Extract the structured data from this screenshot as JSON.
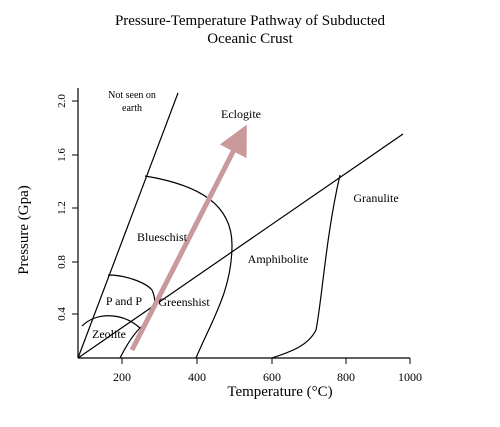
{
  "title": [
    "Pressure-Temperature Pathway of Subducted",
    "Oceanic Crust"
  ],
  "xlabel": "Temperature (°C)",
  "ylabel": "Pressure (Gpa)",
  "x_ticks": [
    "200",
    "400",
    "600",
    "800",
    "1000"
  ],
  "y_ticks": [
    "0.4",
    "0.8",
    "1.2",
    "1.6",
    "2.0"
  ],
  "regions": [
    {
      "key": "not_seen",
      "label": [
        "Not seen on",
        "earth"
      ]
    },
    {
      "key": "eclogite",
      "label": [
        "Eclogite"
      ]
    },
    {
      "key": "blueschist",
      "label": [
        "Blueschist"
      ]
    },
    {
      "key": "granulite",
      "label": [
        "Granulite"
      ]
    },
    {
      "key": "amphibolite",
      "label": [
        "Amphibolite"
      ]
    },
    {
      "key": "greenshist",
      "label": [
        "Greenshist"
      ]
    },
    {
      "key": "p_and_p",
      "label": [
        "P and P"
      ]
    },
    {
      "key": "zeolite",
      "label": [
        "Zeolite"
      ]
    }
  ],
  "arrow_color": "#c9999b",
  "line_color": "#000000"
}
